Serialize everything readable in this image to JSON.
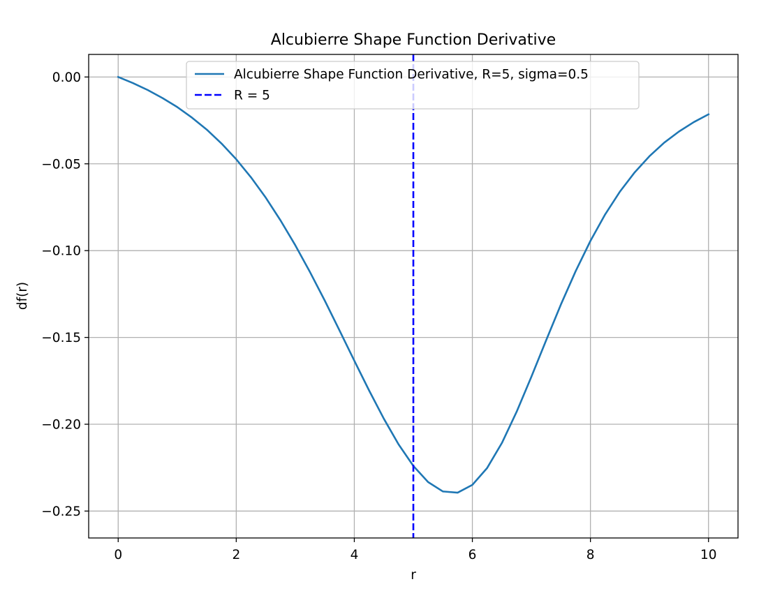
{
  "chart_data": {
    "type": "line",
    "title": "Alcubierre Shape Function Derivative",
    "xlabel": "r",
    "ylabel": "df(r)",
    "xlim": [
      -0.5,
      10.5
    ],
    "ylim": [
      -0.2655,
      0.013
    ],
    "xticks": [
      0,
      2,
      4,
      6,
      8,
      10
    ],
    "xtick_labels": [
      "0",
      "2",
      "4",
      "6",
      "8",
      "10"
    ],
    "yticks": [
      0.0,
      -0.05,
      -0.1,
      -0.15,
      -0.2,
      -0.25
    ],
    "ytick_labels": [
      "0.00",
      "−0.05",
      "−0.10",
      "−0.15",
      "−0.20",
      "−0.25"
    ],
    "grid": true,
    "legend_position": "upper center",
    "series": [
      {
        "name": "Alcubierre Shape Function Derivative, R=5, sigma=0.5",
        "color": "#1f77b4",
        "style": "solid",
        "x": [
          0,
          0.25,
          0.5,
          0.75,
          1.0,
          1.25,
          1.5,
          1.75,
          2.0,
          2.25,
          2.5,
          2.75,
          3.0,
          3.25,
          3.5,
          3.75,
          4.0,
          4.25,
          4.5,
          4.75,
          5.0,
          5.25,
          5.5,
          5.75,
          6.0,
          6.25,
          6.5,
          6.75,
          7.0,
          7.25,
          7.5,
          7.75,
          8.0,
          8.25,
          8.5,
          8.75,
          9.0,
          9.25,
          9.5,
          9.75,
          10.0
        ],
        "y": [
          0.0,
          -0.0035,
          -0.0075,
          -0.0121,
          -0.0173,
          -0.0234,
          -0.0303,
          -0.0383,
          -0.0474,
          -0.0578,
          -0.0695,
          -0.0826,
          -0.0969,
          -0.1124,
          -0.1288,
          -0.146,
          -0.1634,
          -0.1805,
          -0.1968,
          -0.2116,
          -0.224,
          -0.2333,
          -0.2387,
          -0.2394,
          -0.2349,
          -0.2252,
          -0.2108,
          -0.1928,
          -0.1726,
          -0.1516,
          -0.131,
          -0.1118,
          -0.0944,
          -0.0791,
          -0.066,
          -0.0549,
          -0.0456,
          -0.0378,
          -0.0314,
          -0.026,
          -0.0215
        ]
      },
      {
        "name": "R = 5",
        "color": "#0000ff",
        "style": "dashed",
        "vline_x": 5
      }
    ]
  }
}
